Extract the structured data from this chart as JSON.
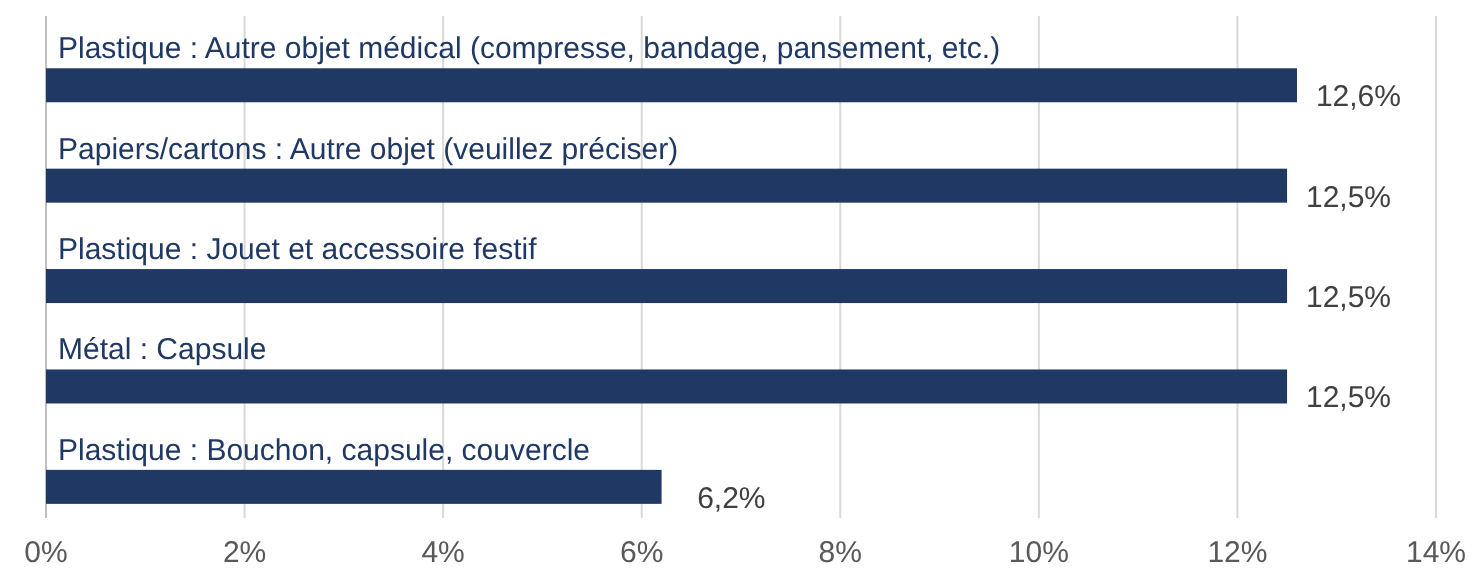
{
  "chart_data": {
    "type": "bar",
    "orientation": "horizontal",
    "categories": [
      "Plastique : Autre objet médical (compresse, bandage, pansement, etc.)",
      "Papiers/cartons : Autre objet (veuillez préciser)",
      "Plastique : Jouet et accessoire festif",
      "Métal : Capsule",
      "Plastique : Bouchon, capsule, couvercle"
    ],
    "values": [
      12.6,
      12.5,
      12.5,
      12.5,
      6.2
    ],
    "value_labels": [
      "12,6%",
      "12,5%",
      "12,5%",
      "12,5%",
      "6,2%"
    ],
    "color": "#1f3864",
    "xlim": [
      0,
      14
    ],
    "xticks": [
      {
        "value": 0,
        "label": "0%"
      },
      {
        "value": 2,
        "label": "2%"
      },
      {
        "value": 4,
        "label": "4%"
      },
      {
        "value": 6,
        "label": "6%"
      },
      {
        "value": 8,
        "label": "8%"
      },
      {
        "value": 10,
        "label": "10%"
      },
      {
        "value": 12,
        "label": "12%"
      },
      {
        "value": 14,
        "label": "14%"
      }
    ],
    "grid": "x"
  }
}
